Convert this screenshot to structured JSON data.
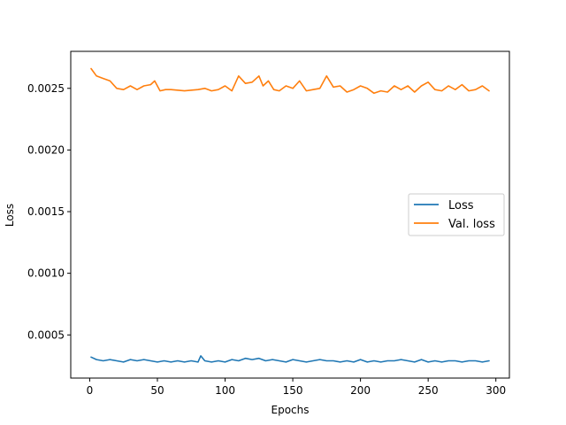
{
  "chart_data": {
    "type": "line",
    "title": "",
    "xlabel": "Epochs",
    "ylabel": "Loss",
    "xlim": [
      -14,
      310
    ],
    "ylim": [
      0.00015,
      0.0028
    ],
    "xticks": [
      {
        "value": 0,
        "label": "0"
      },
      {
        "value": 50,
        "label": "50"
      },
      {
        "value": 100,
        "label": "100"
      },
      {
        "value": 150,
        "label": "150"
      },
      {
        "value": 200,
        "label": "200"
      },
      {
        "value": 250,
        "label": "250"
      },
      {
        "value": 300,
        "label": "300"
      }
    ],
    "yticks": [
      {
        "value": 0.0005,
        "label": "0.0005"
      },
      {
        "value": 0.001,
        "label": "0.0010"
      },
      {
        "value": 0.0015,
        "label": "0.0015"
      },
      {
        "value": 0.002,
        "label": "0.0020"
      },
      {
        "value": 0.0025,
        "label": "0.0025"
      }
    ],
    "grid": false,
    "legend_position": "center-right",
    "series": [
      {
        "name": "Loss",
        "color": "#1f77b4",
        "x": [
          1,
          5,
          10,
          15,
          20,
          25,
          30,
          35,
          40,
          45,
          50,
          55,
          60,
          65,
          70,
          75,
          80,
          82,
          85,
          90,
          95,
          100,
          105,
          110,
          115,
          120,
          125,
          130,
          135,
          140,
          145,
          150,
          155,
          160,
          165,
          170,
          175,
          180,
          185,
          190,
          195,
          200,
          205,
          210,
          215,
          220,
          225,
          230,
          235,
          240,
          245,
          250,
          255,
          260,
          265,
          270,
          275,
          280,
          285,
          290,
          295
        ],
        "y": [
          0.00032,
          0.0003,
          0.00029,
          0.0003,
          0.00029,
          0.00028,
          0.0003,
          0.00029,
          0.0003,
          0.00029,
          0.00028,
          0.00029,
          0.00028,
          0.00029,
          0.00028,
          0.00029,
          0.00028,
          0.00033,
          0.00029,
          0.00028,
          0.00029,
          0.00028,
          0.0003,
          0.00029,
          0.00031,
          0.0003,
          0.00031,
          0.00029,
          0.0003,
          0.00029,
          0.00028,
          0.0003,
          0.00029,
          0.00028,
          0.00029,
          0.0003,
          0.00029,
          0.00029,
          0.00028,
          0.00029,
          0.00028,
          0.0003,
          0.00028,
          0.00029,
          0.00028,
          0.00029,
          0.00029,
          0.0003,
          0.00029,
          0.00028,
          0.0003,
          0.00028,
          0.00029,
          0.00028,
          0.00029,
          0.00029,
          0.00028,
          0.00029,
          0.00029,
          0.00028,
          0.00029
        ]
      },
      {
        "name": "Val. loss",
        "color": "#ff7f0e",
        "x": [
          1,
          5,
          10,
          15,
          20,
          25,
          30,
          35,
          40,
          45,
          48,
          52,
          56,
          60,
          70,
          80,
          85,
          90,
          95,
          100,
          105,
          110,
          115,
          120,
          125,
          128,
          132,
          136,
          140,
          145,
          150,
          155,
          160,
          165,
          170,
          175,
          180,
          185,
          190,
          195,
          200,
          205,
          210,
          215,
          220,
          225,
          230,
          235,
          240,
          245,
          250,
          255,
          260,
          265,
          270,
          275,
          280,
          285,
          290,
          295
        ],
        "y": [
          0.00266,
          0.0026,
          0.00258,
          0.00256,
          0.0025,
          0.00249,
          0.00252,
          0.00249,
          0.00252,
          0.00253,
          0.00256,
          0.00248,
          0.00249,
          0.00249,
          0.00248,
          0.00249,
          0.0025,
          0.00248,
          0.00249,
          0.00252,
          0.00248,
          0.0026,
          0.00254,
          0.00255,
          0.0026,
          0.00252,
          0.00256,
          0.00249,
          0.00248,
          0.00252,
          0.0025,
          0.00256,
          0.00248,
          0.00249,
          0.0025,
          0.0026,
          0.00251,
          0.00252,
          0.00247,
          0.00249,
          0.00252,
          0.0025,
          0.00246,
          0.00248,
          0.00247,
          0.00252,
          0.00249,
          0.00252,
          0.00247,
          0.00252,
          0.00255,
          0.00249,
          0.00248,
          0.00252,
          0.00249,
          0.00253,
          0.00248,
          0.00249,
          0.00252,
          0.00248
        ]
      }
    ]
  }
}
